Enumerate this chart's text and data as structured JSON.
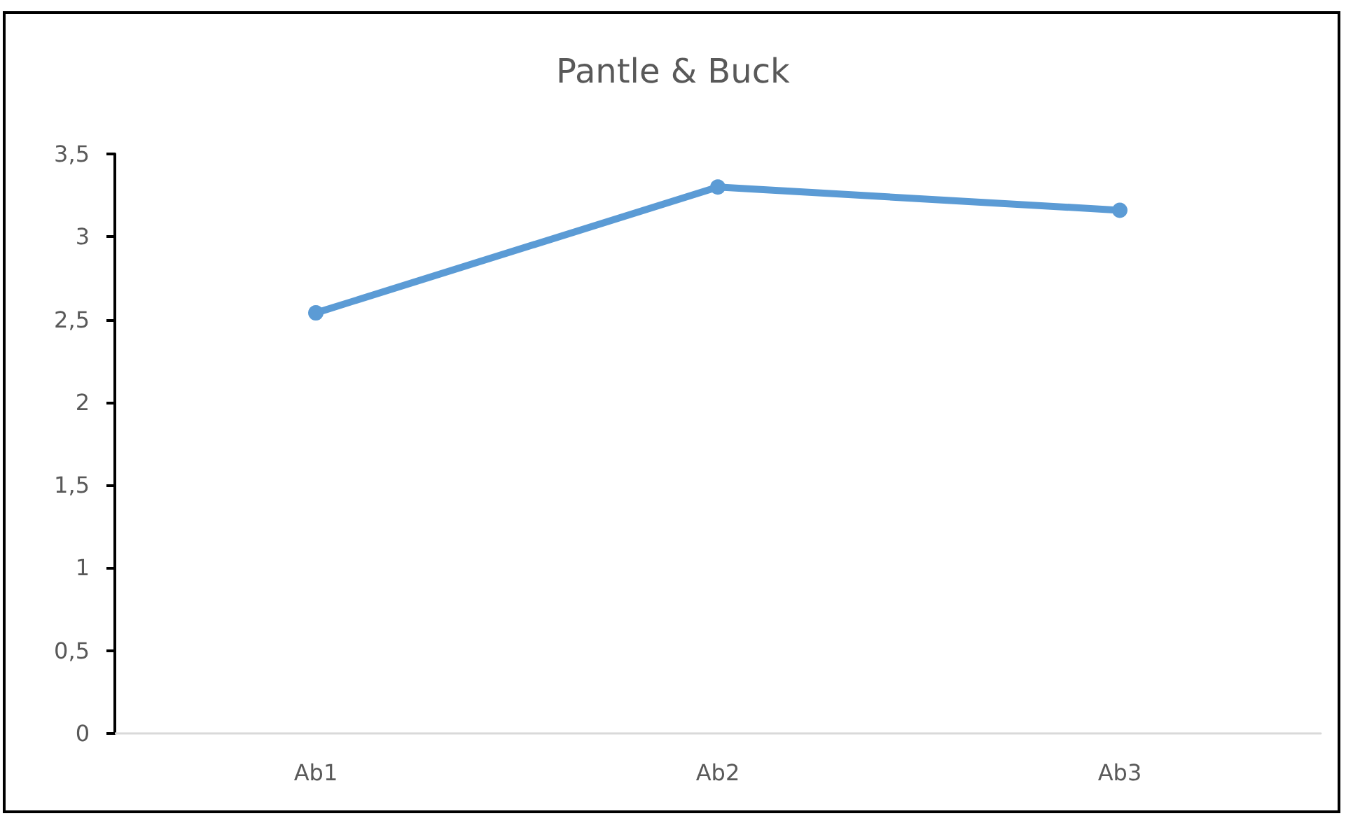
{
  "chart_data": {
    "type": "line",
    "title": "Pantle & Buck",
    "categories": [
      "Ab1",
      "Ab2",
      "Ab3"
    ],
    "series": [
      {
        "color": "#5b9bd5",
        "values": [
          2.54,
          3.3,
          3.16
        ]
      }
    ],
    "ylim": [
      0,
      3.5
    ],
    "yticks": [
      0,
      {
        "value": 0.5,
        "label": "0,5"
      },
      1,
      {
        "value": 1.5,
        "label": "1,5"
      },
      2,
      {
        "value": 2.5,
        "label": "2,5"
      },
      3,
      {
        "value": 3.5,
        "label": "3,5"
      }
    ],
    "grid": false,
    "marker": "circle",
    "line_style": "solid"
  }
}
